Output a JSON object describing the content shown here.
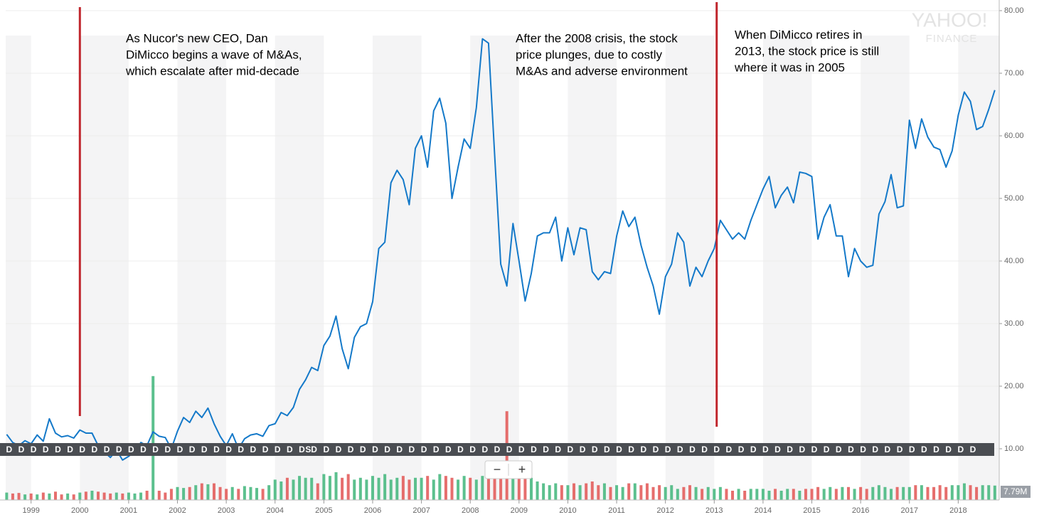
{
  "chart_data": {
    "type": "line",
    "annotations": [
      [
        "As Nucor's new CEO, Dan",
        "DiMicco begins a wave of M&As,",
        "which escalate after mid-decade"
      ],
      [
        "After the 2008 crisis, the stock",
        "price plunges, due to costly",
        "M&As and adverse environment"
      ],
      [
        "When DiMicco retires in",
        "2013, the stock price is still",
        "where it was in 2005"
      ]
    ],
    "markers": [
      {
        "x": 2000.0
      },
      {
        "x": 2013.05
      }
    ],
    "marker_color": "#c0262d",
    "watermark": [
      "YAHOO!",
      "FINANCE"
    ],
    "controls": [
      "−",
      "+"
    ],
    "x": [
      1998.5,
      1998.625,
      1998.75,
      1998.875,
      1999,
      1999.125,
      1999.25,
      1999.375,
      1999.5,
      1999.625,
      1999.75,
      1999.875,
      2000,
      2000.125,
      2000.25,
      2000.375,
      2000.5,
      2000.625,
      2000.75,
      2000.875,
      2001,
      2001.125,
      2001.25,
      2001.375,
      2001.5,
      2001.625,
      2001.75,
      2001.875,
      2002,
      2002.125,
      2002.25,
      2002.375,
      2002.5,
      2002.625,
      2002.75,
      2002.875,
      2003,
      2003.125,
      2003.25,
      2003.375,
      2003.5,
      2003.625,
      2003.75,
      2003.875,
      2004,
      2004.125,
      2004.25,
      2004.375,
      2004.5,
      2004.625,
      2004.75,
      2004.875,
      2005,
      2005.125,
      2005.25,
      2005.375,
      2005.5,
      2005.625,
      2005.75,
      2005.875,
      2006,
      2006.125,
      2006.25,
      2006.375,
      2006.5,
      2006.625,
      2006.75,
      2006.875,
      2007,
      2007.125,
      2007.25,
      2007.375,
      2007.5,
      2007.625,
      2007.75,
      2007.875,
      2008,
      2008.125,
      2008.25,
      2008.375,
      2008.5,
      2008.625,
      2008.75,
      2008.875,
      2009,
      2009.125,
      2009.25,
      2009.375,
      2009.5,
      2009.625,
      2009.75,
      2009.875,
      2010,
      2010.125,
      2010.25,
      2010.375,
      2010.5,
      2010.625,
      2010.75,
      2010.875,
      2011,
      2011.125,
      2011.25,
      2011.375,
      2011.5,
      2011.625,
      2011.75,
      2011.875,
      2012,
      2012.125,
      2012.25,
      2012.375,
      2012.5,
      2012.625,
      2012.75,
      2012.875,
      2013,
      2013.125,
      2013.25,
      2013.375,
      2013.5,
      2013.625,
      2013.75,
      2013.875,
      2014,
      2014.125,
      2014.25,
      2014.375,
      2014.5,
      2014.625,
      2014.75,
      2014.875,
      2015,
      2015.125,
      2015.25,
      2015.375,
      2015.5,
      2015.625,
      2015.75,
      2015.875,
      2016,
      2016.125,
      2016.25,
      2016.375,
      2016.5,
      2016.625,
      2016.75,
      2016.875,
      2017,
      2017.125,
      2017.25,
      2017.375,
      2017.5,
      2017.625,
      2017.75,
      2017.875,
      2018,
      2018.125,
      2018.25,
      2018.375,
      2018.5,
      2018.625,
      2018.75
    ],
    "series": [
      {
        "color": "#1479c9",
        "values": [
          12.3,
          11.0,
          10.5,
          11.3,
          10.8,
          12.2,
          11.2,
          14.8,
          12.5,
          11.9,
          12.1,
          11.7,
          13.0,
          12.5,
          12.5,
          10.5,
          9.5,
          8.6,
          9.8,
          8.2,
          8.8,
          9.5,
          11.0,
          10.5,
          12.7,
          12.0,
          11.8,
          10.0,
          12.8,
          15.0,
          14.2,
          16.0,
          15.0,
          16.5,
          14.0,
          12.0,
          10.5,
          12.4,
          10.0,
          11.6,
          12.2,
          12.4,
          12.0,
          13.7,
          14.0,
          15.8,
          15.3,
          16.6,
          19.5,
          21.0,
          23.0,
          22.5,
          26.5,
          28.0,
          31.2,
          26.0,
          22.8,
          27.8,
          29.5,
          30.0,
          33.5,
          42.0,
          43.0,
          52.5,
          54.5,
          53.0,
          49.0,
          58.0,
          60.0,
          55.0,
          64.0,
          66.0,
          62.0,
          50.0,
          55.0,
          59.5,
          58.0,
          64.5,
          75.5,
          74.8,
          57.0,
          39.5,
          36.0,
          46.0,
          40.0,
          33.6,
          38.0,
          44.0,
          44.5,
          44.5,
          47.0,
          40.0,
          45.3,
          41.0,
          45.3,
          45.0,
          38.3,
          37.0,
          38.3,
          38.0,
          44.0,
          48.0,
          45.5,
          47.0,
          42.5,
          39.0,
          36.0,
          31.5,
          37.5,
          39.5,
          44.5,
          43.0,
          36.0,
          39.0,
          37.5,
          40.0,
          42.0,
          46.5,
          45.0,
          43.5,
          44.5,
          43.5,
          46.5,
          49.0,
          51.5,
          53.5,
          48.5,
          50.5,
          51.8,
          49.3,
          54.2,
          54.0,
          53.5,
          43.5,
          47.0,
          49.0,
          44.0,
          44.0,
          37.5,
          42.0,
          40.0,
          39.0,
          39.3,
          47.5,
          49.5,
          53.8,
          48.5,
          48.8,
          62.5,
          58.0,
          62.7,
          59.8,
          58.2,
          57.8,
          55.0,
          57.6,
          63.3,
          67.0,
          65.5,
          61.0,
          61.5,
          64.2,
          67.3
        ]
      }
    ],
    "volume": {
      "up_color": "#3fb57a",
      "down_color": "#e25553",
      "current_label": "7.79M",
      "values": [
        4,
        3.5,
        3.8,
        3,
        3.5,
        3,
        4,
        3.5,
        4.5,
        3,
        3.5,
        3,
        4,
        4.5,
        5,
        4.5,
        4,
        3.5,
        4,
        3.5,
        4,
        3.5,
        4,
        5,
        67,
        5,
        4,
        6,
        7,
        6.5,
        7,
        8,
        9,
        8.5,
        9,
        7,
        6,
        7,
        6,
        7.5,
        7,
        6.5,
        6,
        8,
        11,
        10,
        12,
        11,
        13,
        12,
        12,
        9,
        14,
        13,
        15,
        12,
        14,
        11,
        12,
        11,
        13,
        12,
        14,
        11,
        12,
        13,
        11,
        12,
        12,
        13,
        11,
        14,
        13,
        12,
        11,
        13,
        12,
        11,
        13,
        14,
        15,
        12,
        48,
        16,
        14,
        13,
        12,
        10,
        9,
        8,
        9,
        8,
        8,
        9,
        8,
        9,
        10,
        8,
        9,
        7,
        8,
        7,
        9,
        9,
        8,
        9,
        7,
        8,
        7,
        8,
        6,
        7,
        8,
        7,
        6,
        7,
        6,
        7,
        6,
        5,
        6,
        5,
        6,
        6,
        6,
        5,
        6,
        5,
        6,
        6,
        5,
        6,
        6,
        7,
        6,
        7,
        6,
        7,
        7,
        6,
        7,
        6,
        7,
        8,
        7,
        6,
        7,
        7,
        7,
        8,
        8,
        7,
        7,
        8,
        7,
        8,
        8,
        9,
        8,
        7,
        8,
        8,
        7.79
      ]
    },
    "dividends": {
      "label": "D",
      "x": [
        1998.55,
        1998.8,
        1999.05,
        1999.3,
        1999.55,
        1999.8,
        2000.05,
        2000.3,
        2000.55,
        2000.8,
        2001.05,
        2001.3,
        2001.55,
        2001.8,
        2002.05,
        2002.3,
        2002.55,
        2002.8,
        2003.05,
        2003.3,
        2003.55,
        2003.8,
        2004.05,
        2004.3,
        2004.55,
        2004.8,
        2005.05,
        2005.3,
        2005.55,
        2005.8,
        2006.05,
        2006.3,
        2006.55,
        2006.8,
        2007.05,
        2007.3,
        2007.55,
        2007.8,
        2008.05,
        2008.3,
        2008.55,
        2008.8,
        2009.05,
        2009.3,
        2009.55,
        2009.8,
        2010.05,
        2010.3,
        2010.55,
        2010.8,
        2011.05,
        2011.3,
        2011.55,
        2011.8,
        2012.05,
        2012.3,
        2012.55,
        2012.8,
        2013.05,
        2013.3,
        2013.55,
        2013.8,
        2014.05,
        2014.3,
        2014.55,
        2014.8,
        2015.05,
        2015.3,
        2015.55,
        2015.8,
        2016.05,
        2016.3,
        2016.55,
        2016.8,
        2017.05,
        2017.3,
        2017.55,
        2017.8,
        2018.05,
        2018.3
      ]
    },
    "split": {
      "label": "S",
      "x": 2004.68
    },
    "xlim": [
      1998.48,
      2018.84
    ],
    "xticks": [
      1999,
      2000,
      2001,
      2002,
      2003,
      2004,
      2005,
      2006,
      2007,
      2008,
      2009,
      2010,
      2011,
      2012,
      2013,
      2014,
      2015,
      2016,
      2017,
      2018
    ],
    "ylim": [
      1.82,
      81.7
    ],
    "yticks": [
      {
        "value": 10,
        "label": "10.00"
      },
      {
        "value": 20,
        "label": "20.00"
      },
      {
        "value": 30,
        "label": "30.00"
      },
      {
        "value": 40,
        "label": "40.00"
      },
      {
        "value": 50,
        "label": "50.00"
      },
      {
        "value": 60,
        "label": "60.00"
      },
      {
        "value": 70,
        "label": "70.00"
      },
      {
        "value": 80,
        "label": "80.00"
      }
    ],
    "grid": true
  }
}
